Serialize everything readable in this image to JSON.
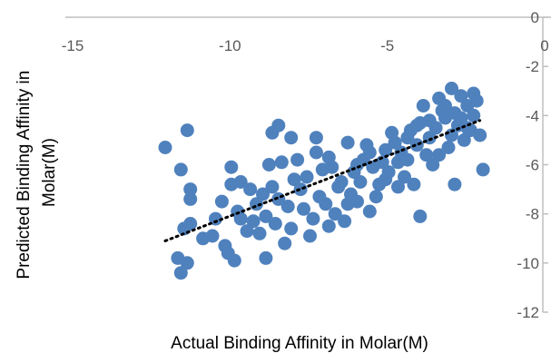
{
  "chart_data": {
    "type": "scatter",
    "title": "",
    "xlabel": "Actual Binding Affinity in Molar(M)",
    "ylabel_line1": "Predicted Binding Affinity in",
    "ylabel_line2": "Molar(M)",
    "xlim": [
      -15,
      0
    ],
    "ylim": [
      -12,
      0
    ],
    "x_ticks": [
      -15,
      -10,
      -5,
      0
    ],
    "y_ticks": [
      0,
      -2,
      -4,
      -6,
      -8,
      -10,
      -12
    ],
    "x_tick_labels": [
      "-15",
      "-10",
      "-5",
      "0"
    ],
    "y_tick_labels": [
      "0",
      "-2",
      "-4",
      "-6",
      "-8",
      "-10",
      "-12"
    ],
    "grid": false,
    "legend": "none",
    "colors": {
      "marker": "#4F81BD",
      "trendline": "#000000",
      "axis": "#BFBFBF",
      "text": "#595959"
    },
    "trendline": {
      "style": "dotted",
      "x": [
        -12.0,
        -2.0
      ],
      "y": [
        -9.1,
        -4.2
      ]
    },
    "series": [
      {
        "points": [
          [
            -12.0,
            -5.3
          ],
          [
            -11.5,
            -6.2
          ],
          [
            -11.3,
            -4.6
          ],
          [
            -11.2,
            -7.0
          ],
          [
            -11.2,
            -7.4
          ],
          [
            -11.4,
            -8.6
          ],
          [
            -11.2,
            -8.4
          ],
          [
            -11.6,
            -9.8
          ],
          [
            -11.3,
            -10.0
          ],
          [
            -11.5,
            -10.4
          ],
          [
            -10.8,
            -9.0
          ],
          [
            -10.5,
            -8.9
          ],
          [
            -10.1,
            -9.3
          ],
          [
            -10.0,
            -9.6
          ],
          [
            -9.8,
            -9.9
          ],
          [
            -9.9,
            -6.1
          ],
          [
            -9.9,
            -6.8
          ],
          [
            -9.6,
            -6.7
          ],
          [
            -9.3,
            -7.0
          ],
          [
            -9.1,
            -7.6
          ],
          [
            -8.7,
            -6.0
          ],
          [
            -8.9,
            -7.2
          ],
          [
            -8.5,
            -8.4
          ],
          [
            -8.8,
            -9.8
          ],
          [
            -8.6,
            -4.7
          ],
          [
            -8.4,
            -4.4
          ],
          [
            -8.3,
            -5.9
          ],
          [
            -8.0,
            -4.9
          ],
          [
            -7.8,
            -5.8
          ],
          [
            -7.5,
            -6.5
          ],
          [
            -7.2,
            -5.5
          ],
          [
            -7.0,
            -6.2
          ],
          [
            -7.2,
            -4.9
          ],
          [
            -6.8,
            -5.7
          ],
          [
            -6.5,
            -6.9
          ],
          [
            -6.2,
            -5.1
          ],
          [
            -6.0,
            -6.3
          ],
          [
            -5.9,
            -7.5
          ],
          [
            -5.6,
            -5.2
          ],
          [
            -5.4,
            -6.1
          ],
          [
            -5.2,
            -6.8
          ],
          [
            -5.0,
            -5.4
          ],
          [
            -4.8,
            -4.7
          ],
          [
            -4.6,
            -5.9
          ],
          [
            -4.4,
            -6.5
          ],
          [
            -4.2,
            -4.6
          ],
          [
            -4.0,
            -5.2
          ],
          [
            -3.8,
            -3.6
          ],
          [
            -3.6,
            -4.9
          ],
          [
            -3.5,
            -6.0
          ],
          [
            -3.3,
            -3.3
          ],
          [
            -3.1,
            -4.1
          ],
          [
            -2.9,
            -2.9
          ],
          [
            -2.7,
            -4.4
          ],
          [
            -2.6,
            -3.2
          ],
          [
            -2.4,
            -3.6
          ],
          [
            -2.2,
            -4.0
          ],
          [
            -2.1,
            -3.4
          ],
          [
            -2.0,
            -4.8
          ],
          [
            -1.9,
            -6.2
          ],
          [
            -2.8,
            -6.8
          ],
          [
            -3.9,
            -8.1
          ],
          [
            -5.5,
            -7.9
          ],
          [
            -6.3,
            -8.3
          ],
          [
            -7.4,
            -8.9
          ],
          [
            -8.2,
            -9.2
          ],
          [
            -9.0,
            -8.8
          ],
          [
            -9.6,
            -8.2
          ],
          [
            -10.2,
            -7.5
          ],
          [
            -8.1,
            -7.7
          ],
          [
            -7.7,
            -7.0
          ],
          [
            -6.9,
            -7.6
          ],
          [
            -6.6,
            -8.0
          ],
          [
            -6.1,
            -7.2
          ],
          [
            -5.8,
            -6.7
          ],
          [
            -5.3,
            -7.3
          ],
          [
            -4.9,
            -6.3
          ],
          [
            -4.5,
            -5.5
          ],
          [
            -4.1,
            -6.8
          ],
          [
            -3.7,
            -5.6
          ],
          [
            -3.4,
            -4.5
          ],
          [
            -3.0,
            -5.3
          ],
          [
            -2.5,
            -5.0
          ],
          [
            -2.3,
            -4.6
          ],
          [
            -9.4,
            -8.7
          ],
          [
            -8.8,
            -8.1
          ],
          [
            -8.4,
            -7.4
          ],
          [
            -7.9,
            -6.6
          ],
          [
            -7.6,
            -7.8
          ],
          [
            -7.1,
            -7.3
          ],
          [
            -6.7,
            -6.1
          ],
          [
            -6.4,
            -6.7
          ],
          [
            -5.7,
            -5.8
          ],
          [
            -5.1,
            -5.9
          ],
          [
            -4.7,
            -5.1
          ],
          [
            -4.3,
            -4.9
          ],
          [
            -3.9,
            -4.3
          ],
          [
            -3.2,
            -3.8
          ],
          [
            -2.8,
            -3.9
          ],
          [
            -2.6,
            -4.1
          ],
          [
            -10.4,
            -8.2
          ],
          [
            -9.7,
            -7.9
          ],
          [
            -9.2,
            -8.3
          ],
          [
            -8.6,
            -6.9
          ],
          [
            -8.0,
            -8.6
          ],
          [
            -7.3,
            -8.2
          ],
          [
            -6.8,
            -8.5
          ],
          [
            -6.2,
            -7.6
          ],
          [
            -5.9,
            -6.0
          ],
          [
            -5.5,
            -5.5
          ],
          [
            -5.0,
            -6.6
          ],
          [
            -4.6,
            -6.9
          ],
          [
            -4.3,
            -5.8
          ],
          [
            -4.0,
            -4.4
          ],
          [
            -3.6,
            -4.2
          ],
          [
            -3.3,
            -5.6
          ],
          [
            -3.1,
            -3.6
          ],
          [
            -2.9,
            -4.8
          ],
          [
            -2.4,
            -4.5
          ],
          [
            -2.2,
            -3.1
          ]
        ]
      }
    ]
  }
}
